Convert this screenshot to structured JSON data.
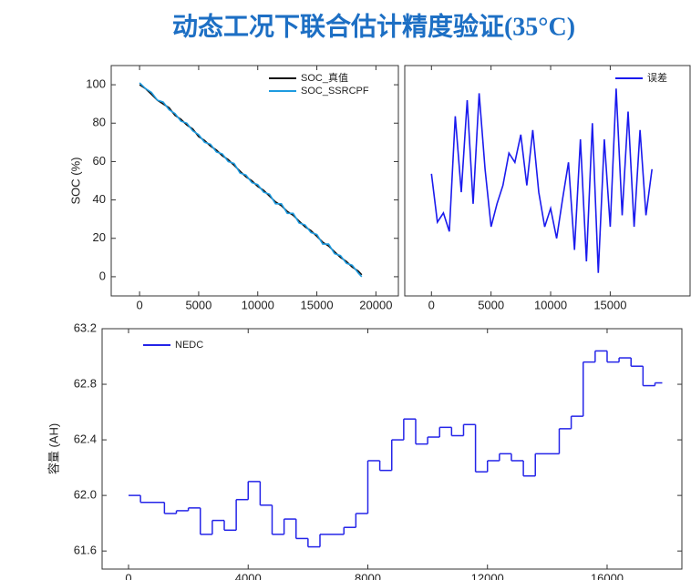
{
  "title": "动态工况下联合估计精度验证(35°C)",
  "chart_data": [
    {
      "type": "line",
      "ylabel": "SOC (%)",
      "legend": "upper right",
      "x": [
        0,
        500,
        1000,
        1500,
        2000,
        2500,
        3000,
        3500,
        4000,
        4500,
        5000,
        5500,
        6000,
        6500,
        7000,
        7500,
        8000,
        8500,
        9000,
        9500,
        10000,
        10500,
        11000,
        11500,
        12000,
        12500,
        13000,
        13500,
        14000,
        14500,
        15000,
        15500,
        16000,
        16500,
        17000,
        17500,
        18000,
        18500,
        18800
      ],
      "series": [
        {
          "name": "SOC_真值",
          "color": "#111111",
          "values": [
            100,
            98,
            95,
            92,
            90,
            88,
            84,
            82,
            79,
            77,
            73,
            71,
            68,
            66,
            63,
            61,
            58,
            55,
            52,
            50,
            47,
            45,
            42,
            39,
            37,
            34,
            32,
            29,
            26,
            24,
            21,
            18,
            16,
            13,
            10,
            8,
            5,
            3,
            1
          ]
        },
        {
          "name": "SOC_SSRCPF",
          "color": "#1e9be0",
          "values": [
            101,
            98,
            96,
            92,
            91,
            87,
            85,
            81,
            80,
            76,
            74,
            70,
            69,
            65,
            64,
            60,
            59,
            54,
            53,
            49,
            48,
            44,
            43,
            38,
            38,
            33,
            33,
            28,
            27,
            23,
            22,
            17,
            17,
            12,
            11,
            7,
            6,
            2,
            0
          ]
        }
      ],
      "xlim": [
        -2400,
        21900
      ],
      "xticks": [
        0,
        5000,
        10000,
        15000,
        20000
      ],
      "ylim": [
        -10,
        110
      ],
      "yticks": [
        0,
        20,
        40,
        60,
        80,
        100
      ]
    },
    {
      "type": "line",
      "legend": "upper right",
      "x": [
        0,
        500,
        1000,
        1500,
        2000,
        2500,
        3000,
        3500,
        4000,
        4500,
        5000,
        5500,
        6000,
        6500,
        7000,
        7500,
        8000,
        8500,
        9000,
        9500,
        10000,
        10500,
        11000,
        11500,
        12000,
        12500,
        13000,
        13500,
        14000,
        14500,
        15000,
        15500,
        16000,
        16500,
        17000,
        17500,
        18000,
        18500
      ],
      "series": [
        {
          "name": "误差",
          "color": "#1a1aee",
          "values": [
            53,
            32,
            36,
            28,
            78,
            45,
            85,
            40,
            88,
            55,
            30,
            40,
            48,
            62,
            58,
            70,
            48,
            72,
            45,
            30,
            38,
            25,
            42,
            58,
            20,
            68,
            15,
            75,
            10,
            68,
            30,
            90,
            35,
            80,
            30,
            72,
            35,
            55
          ]
        }
      ],
      "xlim": [
        -2240,
        21700
      ],
      "xticks": [
        0,
        5000,
        10000,
        15000
      ],
      "ylim": [
        0,
        100
      ]
    },
    {
      "type": "line",
      "drawstyle": "steps-post",
      "ylabel": "容量 (AH)",
      "legend": "upper left",
      "x": [
        0,
        400,
        1200,
        1600,
        2000,
        2400,
        2800,
        3200,
        3600,
        4000,
        4400,
        4800,
        5200,
        5600,
        6000,
        6400,
        7200,
        7600,
        8000,
        8400,
        8800,
        9200,
        9600,
        10000,
        10400,
        10800,
        11200,
        11600,
        12000,
        12400,
        12800,
        13200,
        13600,
        14400,
        14800,
        15200,
        15600,
        16000,
        16400,
        16800,
        17200,
        17600
      ],
      "series": [
        {
          "name": "NEDC",
          "color": "#2424e8",
          "values": [
            62.0,
            61.95,
            61.87,
            61.89,
            61.91,
            61.72,
            61.82,
            61.75,
            61.97,
            62.1,
            61.93,
            61.72,
            61.83,
            61.69,
            61.63,
            61.72,
            61.77,
            61.87,
            62.25,
            62.18,
            62.4,
            62.55,
            62.37,
            62.42,
            62.49,
            62.43,
            62.51,
            62.17,
            62.25,
            62.3,
            62.25,
            62.14,
            62.3,
            62.48,
            62.57,
            62.96,
            63.04,
            62.96,
            62.99,
            62.93,
            62.79,
            62.81
          ]
        }
      ],
      "xlim": [
        -884,
        18500
      ],
      "xticks": [
        0,
        4000,
        8000,
        12000,
        16000
      ],
      "ylim": [
        61.47,
        63.2
      ],
      "yticks": [
        61.6,
        {
          "value": 62,
          "label": "62.0"
        },
        62.4,
        62.8,
        63.2
      ]
    }
  ]
}
